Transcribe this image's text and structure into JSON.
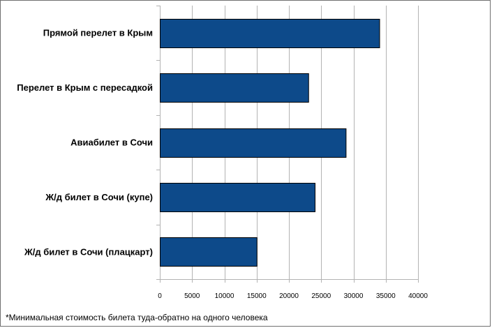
{
  "chart_data": {
    "type": "bar",
    "orientation": "horizontal",
    "categories": [
      "Прямой перелет в Крым",
      "Перелет в Крым с пересадкой",
      "Авиабилет в Сочи",
      "Ж/д билет в Сочи (купе)",
      "Ж/д билет в Сочи (плацкарт)"
    ],
    "values": [
      34000,
      23000,
      28800,
      24000,
      15000
    ],
    "xlim": [
      0,
      40000
    ],
    "xticks": [
      0,
      5000,
      10000,
      15000,
      20000,
      25000,
      30000,
      35000,
      40000
    ],
    "grid": true,
    "bar_color": "#0d4a8a",
    "bar_edge_color": "#000000",
    "grid_color": "#b3b3b3",
    "title": "",
    "xlabel": "",
    "ylabel": ""
  },
  "footnote": "*Минимальная стоимость билета туда-обратно на одного человека"
}
